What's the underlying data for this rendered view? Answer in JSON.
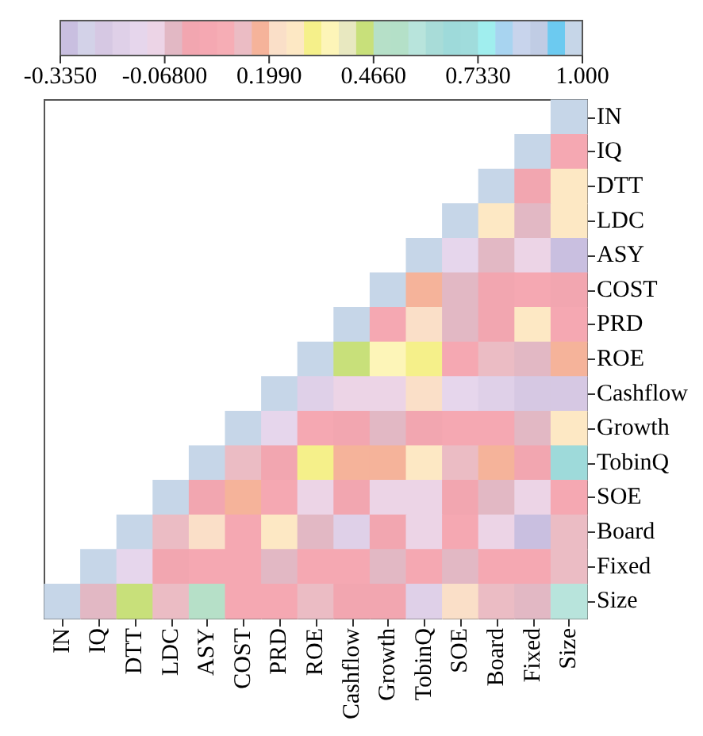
{
  "chart_data": {
    "type": "heatmap",
    "categories": [
      "IN",
      "IQ",
      "DTT",
      "LDC",
      "ASY",
      "COST",
      "PRD",
      "ROE",
      "Cashflow",
      "Growth",
      "TobinQ",
      "SOE",
      "Board",
      "Fixed",
      "Size"
    ],
    "y_categories": [
      "IN",
      "IQ",
      "DTT",
      "LDC",
      "ASY",
      "COST",
      "PRD",
      "ROE",
      "Cashflow",
      "Growth",
      "TobinQ",
      "SOE",
      "Board",
      "Fixed",
      "Size"
    ],
    "cells": [
      [
        null,
        null,
        null,
        null,
        null,
        null,
        null,
        null,
        null,
        null,
        null,
        null,
        null,
        null,
        1
      ],
      [
        null,
        null,
        null,
        null,
        null,
        null,
        null,
        null,
        null,
        null,
        null,
        null,
        null,
        1,
        0.04
      ],
      [
        null,
        null,
        null,
        null,
        null,
        null,
        null,
        null,
        null,
        null,
        null,
        null,
        1,
        0.0,
        0.27
      ],
      [
        null,
        null,
        null,
        null,
        null,
        null,
        null,
        null,
        null,
        null,
        null,
        1,
        0.27,
        -0.05,
        0.27
      ],
      [
        null,
        null,
        null,
        null,
        null,
        null,
        null,
        null,
        null,
        null,
        1,
        -0.14,
        -0.05,
        -0.09,
        -0.31
      ],
      [
        null,
        null,
        null,
        null,
        null,
        null,
        null,
        null,
        null,
        1,
        0.18,
        -0.05,
        0.0,
        0.04,
        0.0
      ],
      [
        null,
        null,
        null,
        null,
        null,
        null,
        null,
        null,
        1,
        0.04,
        0.22,
        -0.05,
        0.0,
        0.27,
        0.04
      ],
      [
        null,
        null,
        null,
        null,
        null,
        null,
        null,
        1,
        0.44,
        0.36,
        0.31,
        0.04,
        0.13,
        -0.05,
        0.18
      ],
      [
        null,
        null,
        null,
        null,
        null,
        null,
        1,
        -0.18,
        -0.09,
        -0.09,
        0.22,
        -0.14,
        -0.18,
        -0.22,
        -0.22
      ],
      [
        null,
        null,
        null,
        null,
        null,
        1,
        -0.14,
        0.04,
        0.0,
        -0.05,
        0.0,
        0.04,
        0.04,
        -0.05,
        0.27
      ],
      [
        null,
        null,
        null,
        null,
        1,
        0.13,
        0.0,
        0.31,
        0.18,
        0.18,
        0.27,
        0.13,
        0.18,
        0.0,
        0.66
      ],
      [
        null,
        null,
        null,
        1,
        0.0,
        0.18,
        0.04,
        -0.09,
        0.0,
        -0.09,
        -0.09,
        0.0,
        -0.05,
        -0.09,
        0.04
      ],
      [
        null,
        null,
        1,
        0.13,
        0.22,
        0.04,
        0.27,
        -0.05,
        -0.18,
        0.0,
        -0.09,
        0.04,
        -0.09,
        -0.31,
        0.13
      ],
      [
        null,
        1,
        -0.14,
        0.0,
        0.04,
        0.04,
        -0.05,
        0.04,
        0.04,
        -0.05,
        0.04,
        -0.05,
        0.04,
        0.04,
        0.13
      ],
      [
        1,
        -0.05,
        0.44,
        0.13,
        0.49,
        0.04,
        0.04,
        0.13,
        0.0,
        0.0,
        -0.18,
        0.22,
        0.13,
        -0.05,
        0.58
      ]
    ],
    "clim": [
      -0.335,
      1.0
    ],
    "cticks": [
      {
        "value": -0.335,
        "label": "-0.3350"
      },
      {
        "value": -0.068,
        "label": "-0.06800"
      },
      {
        "value": 0.199,
        "label": "0.1990"
      },
      {
        "value": 0.466,
        "label": "0.4660"
      },
      {
        "value": 0.733,
        "label": "0.7330"
      },
      {
        "value": 1.0,
        "label": "1.000"
      }
    ],
    "colors": [
      "#c9bfe0",
      "#d3d2e8",
      "#d6c8e3",
      "#dfd0e8",
      "#e6d6ec",
      "#ecd4e6",
      "#e2b8c4",
      "#f2a6b0",
      "#f5a8b2",
      "#f6adb5",
      "#ebbcc4",
      "#f5b39a",
      "#fadfc8",
      "#fde8c4",
      "#f5f08a",
      "#fdf5b8",
      "#e8e8c0",
      "#c8e07a",
      "#b6e0c8",
      "#b4e0c8",
      "#b8e4dc",
      "#a8dcd8",
      "#9edada",
      "#a0dcdc",
      "#a0eeee",
      "#a8d4f0",
      "#c8d4ec",
      "#c0cce4",
      "#6ccaf0",
      "#c6d6e8"
    ]
  }
}
